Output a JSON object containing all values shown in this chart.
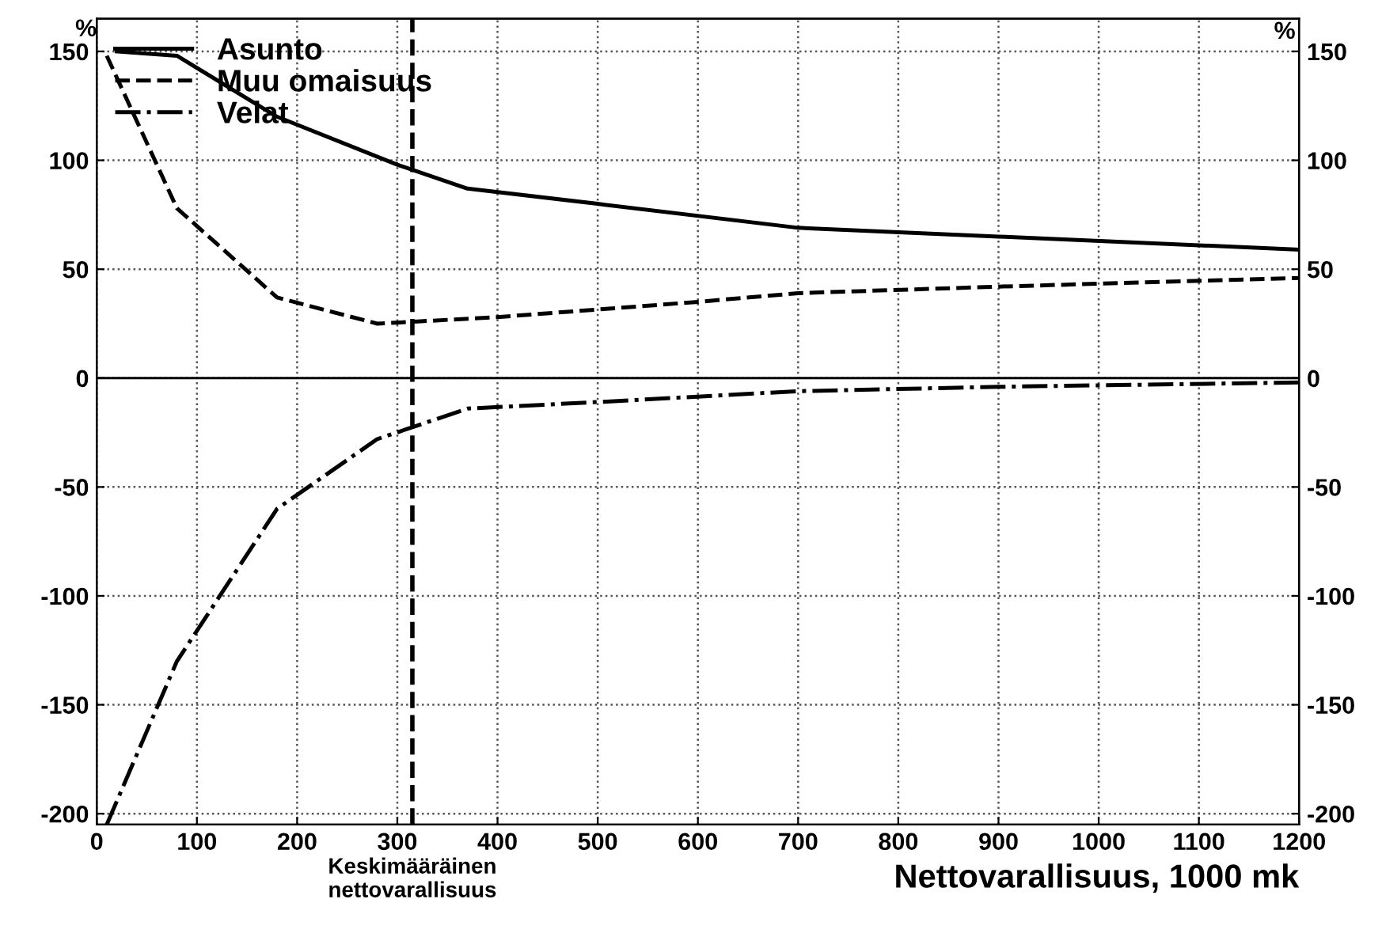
{
  "chart_data": {
    "type": "line",
    "xlabel": "Nettovarallisuus, 1000 mk",
    "ylabel": "%",
    "y2label": "%",
    "xlim": [
      0,
      1200
    ],
    "xticks": [
      0,
      100,
      200,
      300,
      400,
      500,
      600,
      700,
      800,
      900,
      1000,
      1100,
      1200
    ],
    "ylim": [
      -205,
      165
    ],
    "yticks": [
      -200,
      -150,
      -100,
      -50,
      0,
      50,
      100,
      150
    ],
    "y2lim": [
      -205,
      165
    ],
    "y2ticks": [
      -200,
      -150,
      -100,
      -50,
      0,
      50,
      100,
      150
    ],
    "grid": true,
    "legend": "top left",
    "series": [
      {
        "name": "Asunto",
        "color": "#000000",
        "line_style": "solid",
        "x": [
          20,
          80,
          180,
          300,
          370,
          500,
          700,
          900,
          1200
        ],
        "values": [
          150,
          148,
          120,
          98,
          87,
          80,
          69,
          65,
          59
        ]
      },
      {
        "name": "Muu omaisuus",
        "color": "#000000",
        "line_style": "dashed",
        "x": [
          10,
          80,
          180,
          280,
          320,
          400,
          600,
          700,
          900,
          1200
        ],
        "values": [
          148,
          78,
          37,
          25,
          26,
          28,
          35,
          39,
          42,
          46
        ]
      },
      {
        "name": "Velat",
        "color": "#000000",
        "line_style": "dashdot",
        "x": [
          10,
          80,
          180,
          280,
          370,
          500,
          700,
          900,
          1200
        ],
        "values": [
          -205,
          -130,
          -60,
          -28,
          -14,
          -11,
          -6,
          -4,
          -2
        ]
      }
    ],
    "ref_lines": [
      {
        "axis": "x",
        "value": 315,
        "label": "Keskimääräinen\nnettovarallisuus",
        "line_style": "dashed",
        "color": "#000000"
      },
      {
        "axis": "y",
        "value": 0,
        "line_style": "solid",
        "color": "#000000"
      }
    ]
  }
}
